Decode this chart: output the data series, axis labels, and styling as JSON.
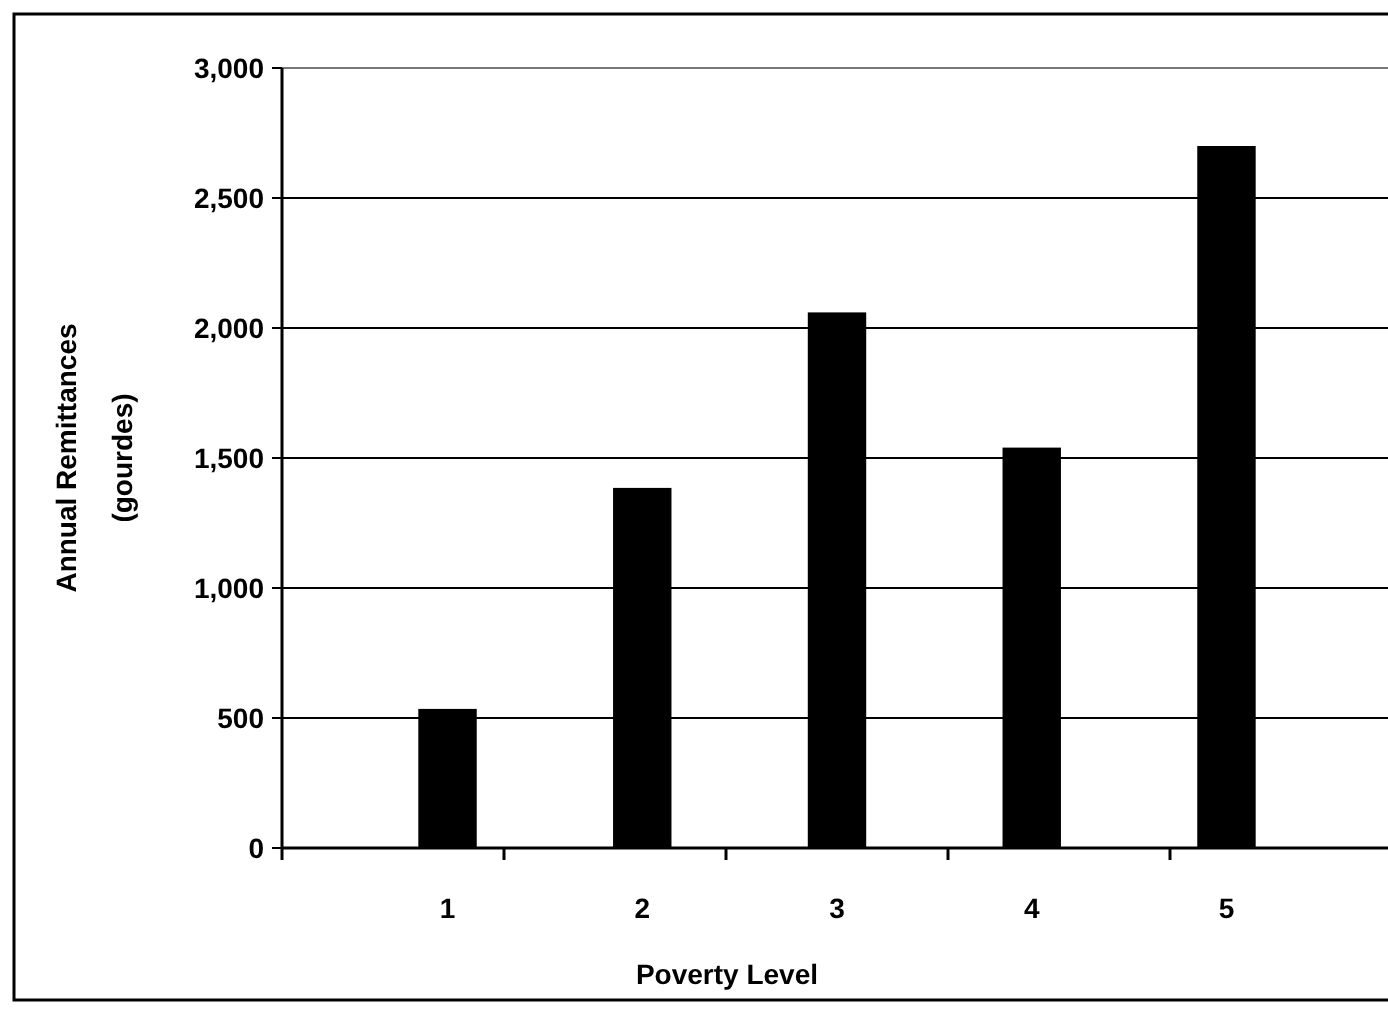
{
  "chart_data": {
    "type": "bar",
    "xlabel": "Poverty Level",
    "ylabel": "Annual Remittances (gourdes)",
    "categories": [
      "1",
      "2",
      "3",
      "4",
      "5"
    ],
    "values": [
      535,
      1385,
      2060,
      1540,
      2700
    ],
    "color": "#000000",
    "ylim": [
      0,
      3000
    ],
    "yticks": [
      {
        "value": 0,
        "label": "0"
      },
      {
        "value": 500,
        "label": "500"
      },
      {
        "value": 1000,
        "label": "1,000"
      },
      {
        "value": 1500,
        "label": "1,500"
      },
      {
        "value": 2000,
        "label": "2,000"
      },
      {
        "value": 2500,
        "label": "2,500"
      },
      {
        "value": 3000,
        "label": "3,000"
      }
    ],
    "grid": "y"
  }
}
